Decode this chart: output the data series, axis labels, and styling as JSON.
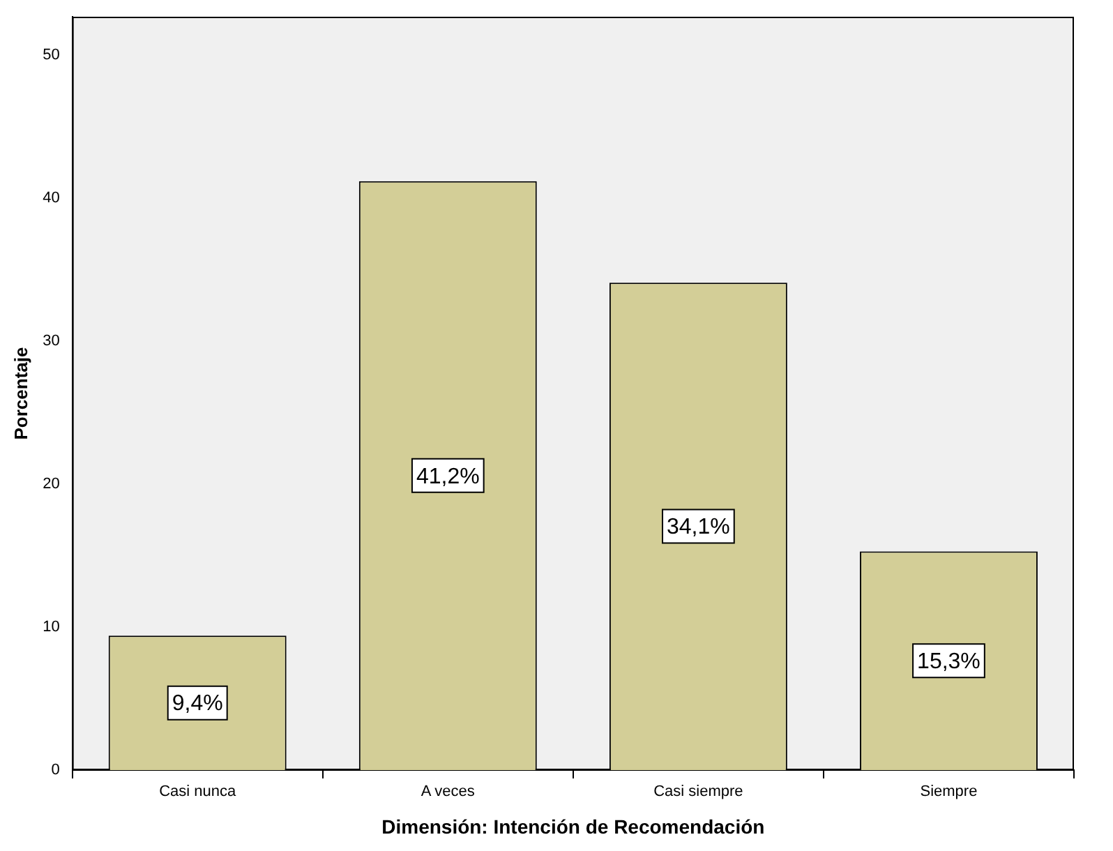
{
  "chart_data": {
    "type": "bar",
    "xlabel": "Dimensión: Intención de Recomendación",
    "ylabel": "Porcentaje",
    "categories": [
      "Casi nunca",
      "A veces",
      "Casi siempre",
      "Siempre"
    ],
    "values": [
      9.4,
      41.2,
      34.1,
      15.3
    ],
    "value_labels": [
      "9,4%",
      "41,2%",
      "34,1%",
      "15,3%"
    ],
    "color": "#d3ce97",
    "ylim": [
      0,
      52.7
    ],
    "yticks": [
      0,
      10,
      20,
      30,
      40,
      50
    ],
    "grid": false,
    "legend": false
  }
}
